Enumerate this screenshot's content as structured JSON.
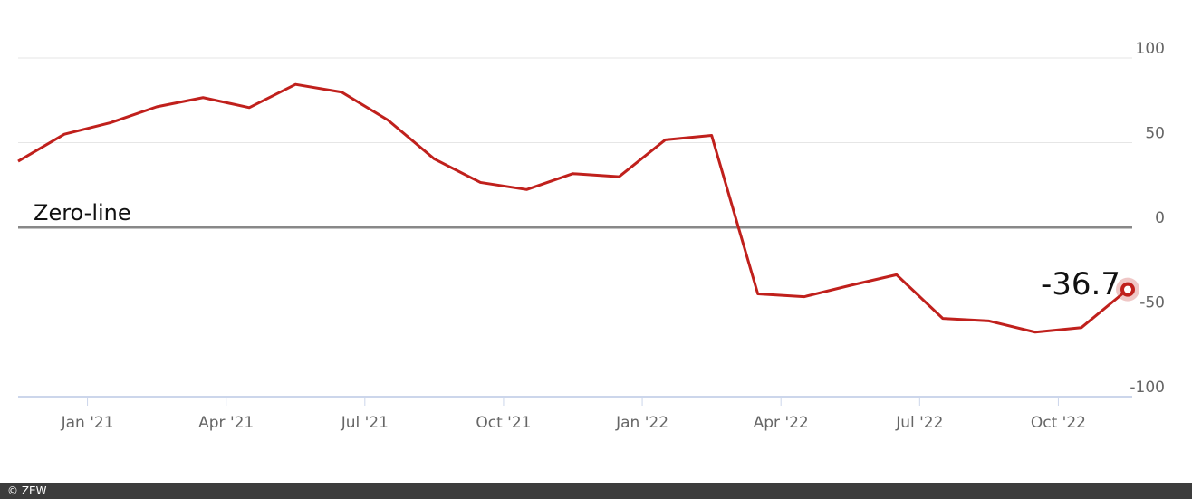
{
  "chart_data": {
    "type": "line",
    "x": [
      "2020-11",
      "2020-12",
      "2021-01",
      "2021-02",
      "2021-03",
      "2021-04",
      "2021-05",
      "2021-06",
      "2021-07",
      "2021-08",
      "2021-09",
      "2021-10",
      "2021-11",
      "2021-12",
      "2022-01",
      "2022-02",
      "2022-03",
      "2022-04",
      "2022-05",
      "2022-06",
      "2022-07",
      "2022-08",
      "2022-09",
      "2022-10",
      "2022-11"
    ],
    "values": [
      39.0,
      55.0,
      61.8,
      71.2,
      76.6,
      70.7,
      84.4,
      79.8,
      63.3,
      40.4,
      26.5,
      22.3,
      31.7,
      29.9,
      51.7,
      54.3,
      -39.3,
      -41.0,
      -34.3,
      -28.0,
      -53.8,
      -55.3,
      -61.9,
      -59.2,
      -36.7
    ],
    "color": "#c0201c",
    "xlim": [
      "2020-11",
      "2022-11"
    ],
    "xticks": [
      {
        "value": "2021-01",
        "label": "Jan '21"
      },
      {
        "value": "2021-04",
        "label": "Apr '21"
      },
      {
        "value": "2021-07",
        "label": "Jul '21"
      },
      {
        "value": "2021-10",
        "label": "Oct '21"
      },
      {
        "value": "2022-01",
        "label": "Jan '22"
      },
      {
        "value": "2022-04",
        "label": "Apr '22"
      },
      {
        "value": "2022-07",
        "label": "Jul '22"
      },
      {
        "value": "2022-10",
        "label": "Oct '22"
      }
    ],
    "ylim": [
      -100,
      100
    ],
    "yticks": [
      -100,
      -50,
      0,
      50,
      100
    ],
    "grid": true,
    "zero_line": true,
    "annotation": "Zero-line",
    "label_last": true
  },
  "footer": "© ZEW"
}
